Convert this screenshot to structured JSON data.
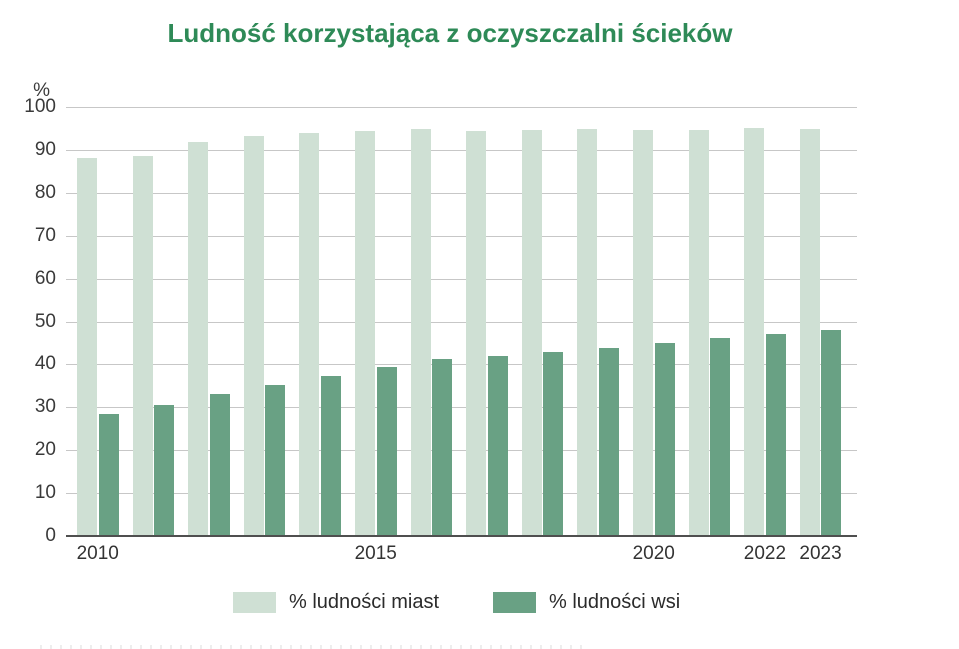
{
  "title": "Ludność korzystająca z oczyszczalni ścieków",
  "y_axis": {
    "unit": "%",
    "ticks": [
      0,
      10,
      20,
      30,
      40,
      50,
      60,
      70,
      80,
      90,
      100
    ],
    "max": 100
  },
  "legend": {
    "items": [
      "% ludności miast",
      "% ludności wsi"
    ],
    "position": "bottom"
  },
  "colors": {
    "urban_bar": "#cfe0d4",
    "rural_bar": "#69a184",
    "title_text": "#2e8a57",
    "axis_text": "#3a3a3a",
    "gridline": "#c7c7c7",
    "axis_line": "#4f4f4f",
    "background": "#ffffff"
  },
  "chart_data": {
    "type": "bar",
    "title": "Ludność korzystająca z oczyszczalni ścieków",
    "xlabel": "",
    "ylabel": "%",
    "ylim": [
      0,
      100
    ],
    "grid": true,
    "legend_position": "bottom",
    "categories": [
      2010,
      2011,
      2012,
      2013,
      2014,
      2015,
      2016,
      2017,
      2018,
      2019,
      2020,
      2021,
      2022,
      2023
    ],
    "series": [
      {
        "name": "% ludności miast",
        "color": "#cfe0d4",
        "values": [
          88.1,
          88.5,
          91.8,
          93.3,
          94.0,
          94.5,
          94.9,
          94.4,
          94.6,
          94.8,
          94.7,
          94.7,
          95.2,
          94.8
        ]
      },
      {
        "name": "% ludności wsi",
        "color": "#69a184",
        "values": [
          28.5,
          30.6,
          33.0,
          35.3,
          37.3,
          39.5,
          41.2,
          42.0,
          42.9,
          43.9,
          45.1,
          46.2,
          47.1,
          48.0
        ]
      }
    ],
    "visible_x_ticks": [
      {
        "label": "2010",
        "index": 0
      },
      {
        "label": "2015",
        "index": 5
      },
      {
        "label": "2020",
        "index": 10
      },
      {
        "label": "2022",
        "index": 12
      },
      {
        "label": "2023",
        "index": 13
      }
    ]
  }
}
